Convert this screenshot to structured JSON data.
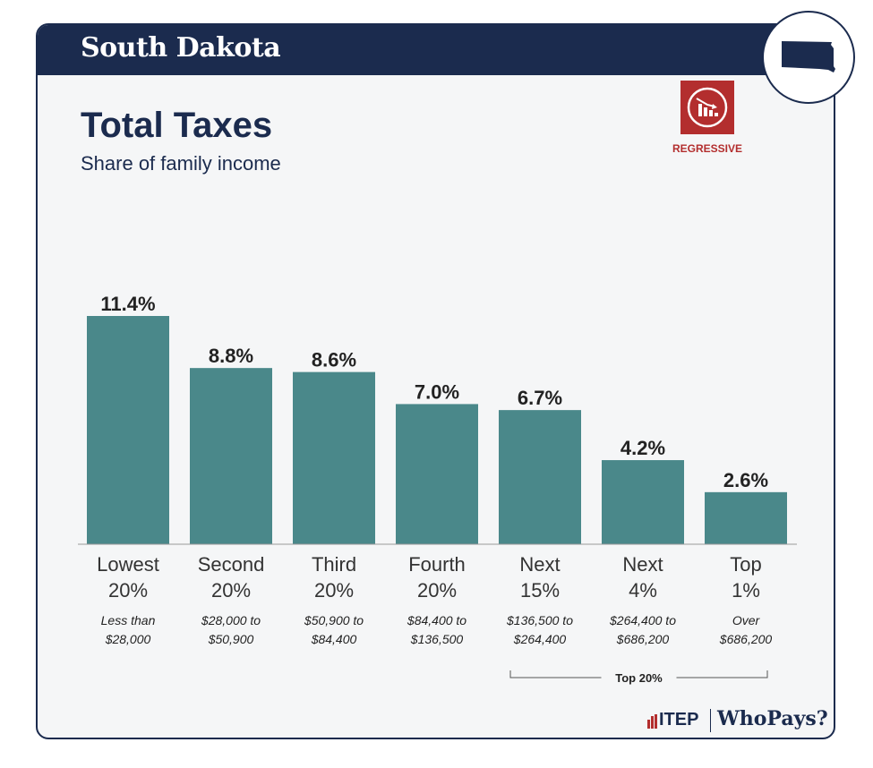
{
  "header": {
    "state_name": "South Dakota"
  },
  "badge": {
    "label": "REGRESSIVE"
  },
  "footer": {
    "itep": "ITEP",
    "whopays": "WhoPays?"
  },
  "colors": {
    "navy": "#1b2b4e",
    "bar": "#4a888a",
    "accent_red": "#b32e2e"
  },
  "chart_data": {
    "type": "bar",
    "title": "Total Taxes",
    "subtitle": "Share of family income",
    "categories": [
      "Lowest 20%",
      "Second 20%",
      "Third 20%",
      "Fourth 20%",
      "Next 15%",
      "Next 4%",
      "Top 1%"
    ],
    "category_lines": [
      [
        "Lowest",
        "20%"
      ],
      [
        "Second",
        "20%"
      ],
      [
        "Third",
        "20%"
      ],
      [
        "Fourth",
        "20%"
      ],
      [
        "Next",
        "15%"
      ],
      [
        "Next",
        "4%"
      ],
      [
        "Top",
        "1%"
      ]
    ],
    "income_ranges": [
      [
        "Less than",
        "$28,000"
      ],
      [
        "$28,000 to",
        "$50,900"
      ],
      [
        "$50,900 to",
        "$84,400"
      ],
      [
        "$84,400 to",
        "$136,500"
      ],
      [
        "$136,500 to",
        "$264,400"
      ],
      [
        "$264,400 to",
        "$686,200"
      ],
      [
        "Over",
        "$686,200"
      ]
    ],
    "values": [
      11.4,
      8.8,
      8.6,
      7.0,
      6.7,
      4.2,
      2.6
    ],
    "value_labels": [
      "11.4%",
      "8.8%",
      "8.6%",
      "7.0%",
      "6.7%",
      "4.2%",
      "2.6%"
    ],
    "unit": "%",
    "ylim": [
      0,
      11.4
    ],
    "grid": false,
    "bracket": {
      "label": "Top 20%",
      "from_index": 4,
      "to_index": 6
    }
  }
}
